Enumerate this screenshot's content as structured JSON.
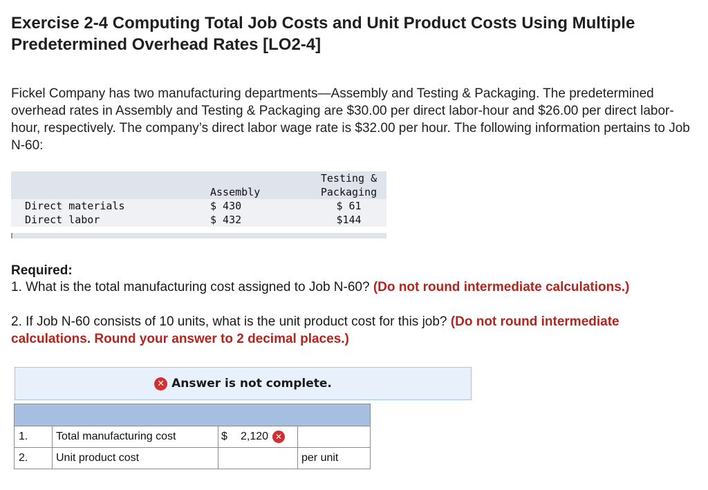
{
  "title": "Exercise 2-4 Computing Total Job Costs and Unit Product Costs Using Multiple Predetermined Overhead Rates [LO2-4]",
  "intro": "Fickel Company has two manufacturing departments—Assembly and Testing & Packaging. The predetermined overhead rates in Assembly and Testing & Packaging are $30.00 per direct labor-hour and $26.00 per direct labor-hour, respectively. The company’s direct labor wage rate is $32.00 per hour. The following information pertains to Job N-60:",
  "data_table": {
    "headers": [
      "Assembly",
      "Testing &",
      "Packaging"
    ],
    "rows": [
      {
        "label": "Direct materials",
        "assembly": "$ 430",
        "testing": "$ 61"
      },
      {
        "label": "Direct labor",
        "assembly": "$ 432",
        "testing": "$144"
      }
    ]
  },
  "required": {
    "title": "Required:",
    "q1_text": "1. What is the total manufacturing cost assigned to Job N-60? ",
    "q1_note": "(Do not round intermediate calculations.)",
    "q2_text": "2. If Job N-60 consists of 10 units, what is the unit product cost for this job? ",
    "q2_note": "(Do not round intermediate calculations. Round your answer to 2 decimal places.)"
  },
  "banner": {
    "icon": "x-circle-icon",
    "text": "Answer is not complete."
  },
  "answers": [
    {
      "num": "1.",
      "label": "Total manufacturing cost",
      "currency": "$",
      "value": "2,120",
      "unit": "",
      "status": "incorrect"
    },
    {
      "num": "2.",
      "label": "Unit product cost",
      "currency": "",
      "value": "",
      "unit": "per unit",
      "status": ""
    }
  ],
  "colors": {
    "emphasis": "#b5241c",
    "error_icon": "#d32f2f",
    "banner_bg": "#e8f1fb",
    "answer_header": "#a6bfe0"
  }
}
